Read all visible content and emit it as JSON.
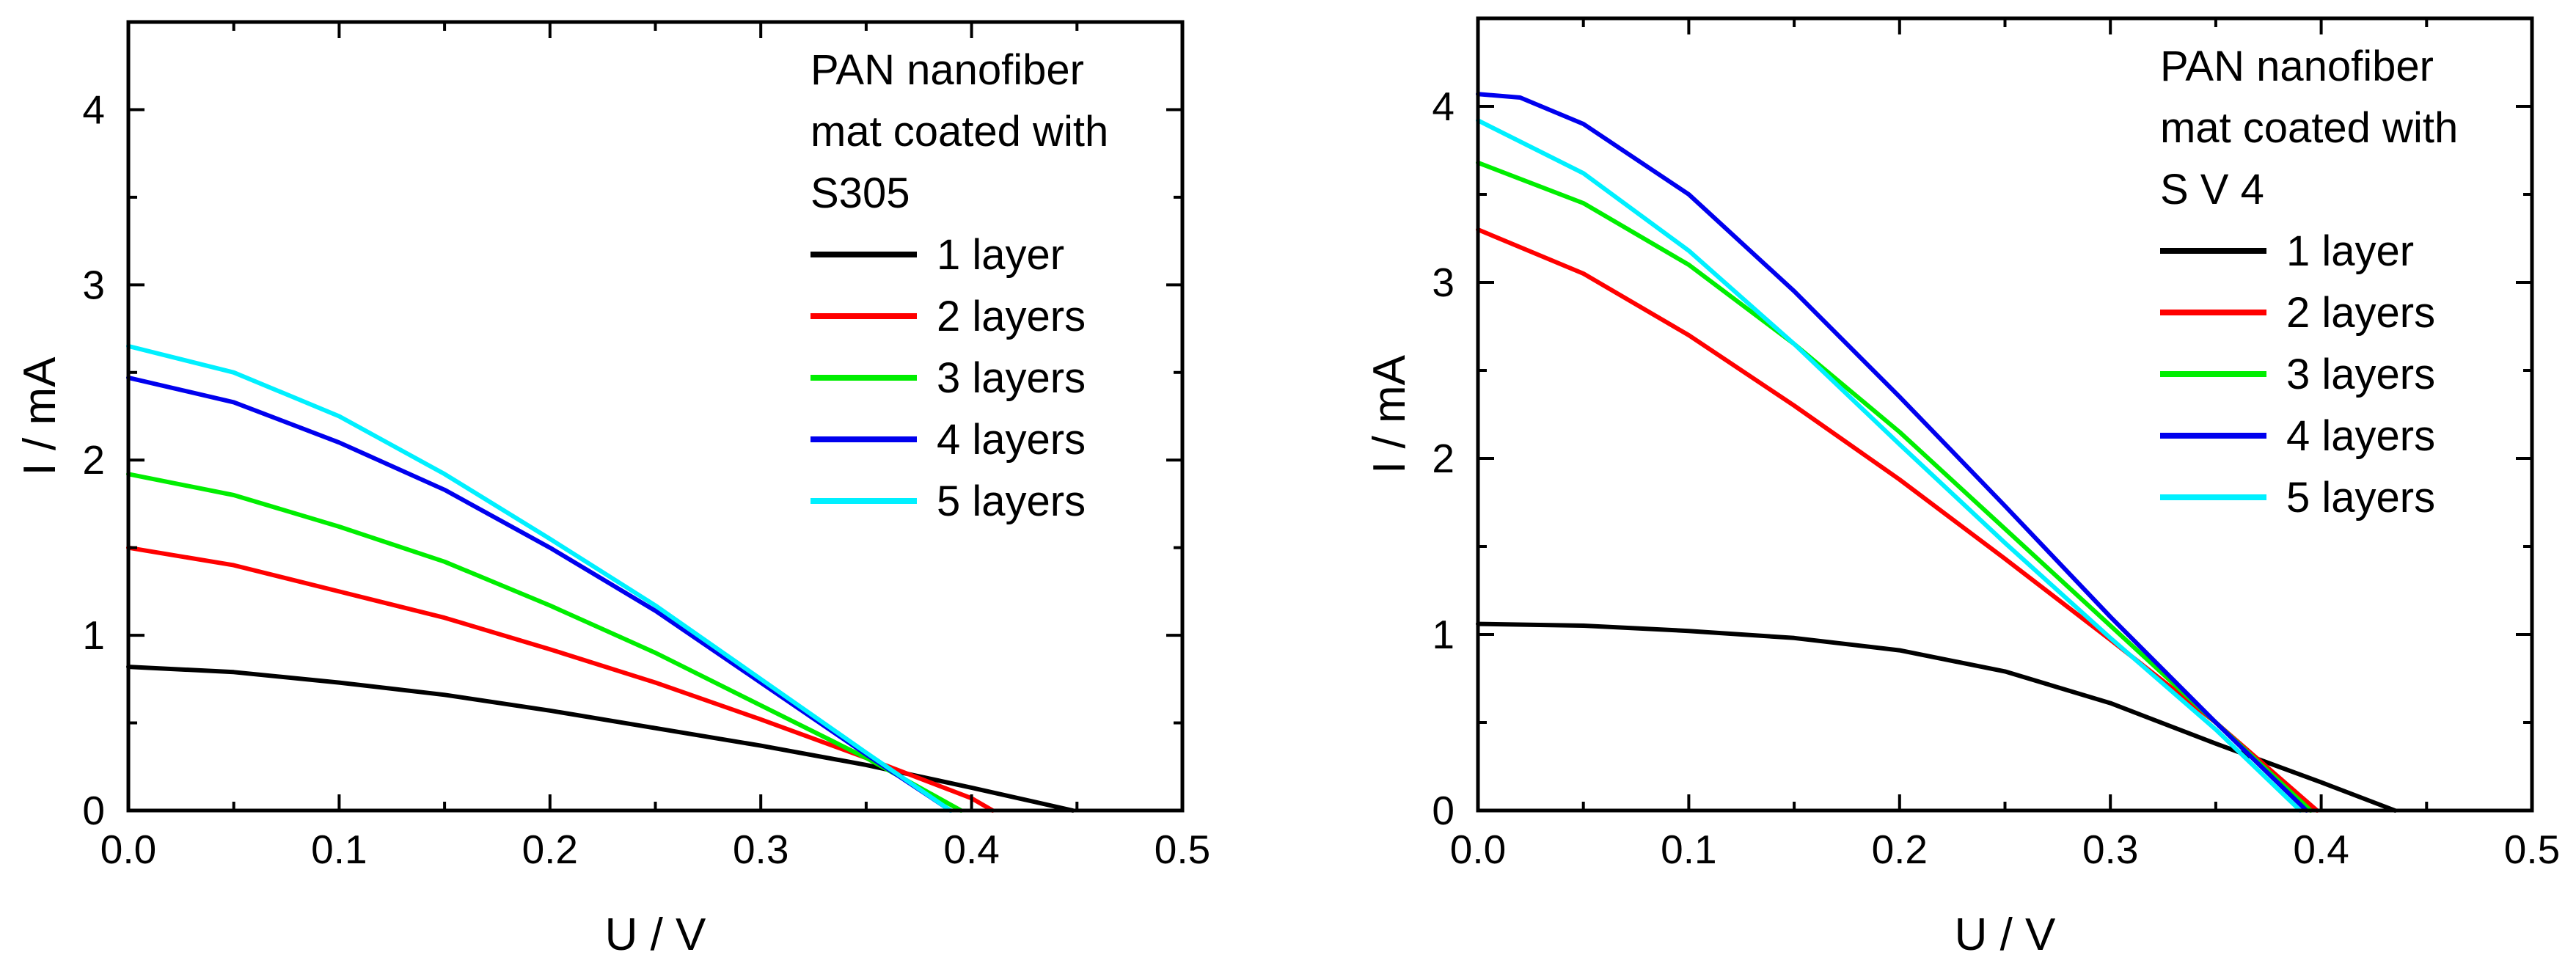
{
  "chart_data": [
    {
      "type": "line",
      "title": "",
      "xlabel": "U / V",
      "ylabel": "I / mA",
      "xlim": [
        0,
        0.5
      ],
      "ylim": [
        0,
        4.5
      ],
      "xticks": [
        0.0,
        0.1,
        0.2,
        0.3,
        0.4,
        0.5
      ],
      "xtick_labels": [
        "0.0",
        "0.1",
        "0.2",
        "0.3",
        "0.4",
        "0.5"
      ],
      "yticks": [
        0,
        1,
        2,
        3,
        4
      ],
      "ytick_labels": [
        "0",
        "1",
        "2",
        "3",
        "4"
      ],
      "grid": false,
      "legend_position": "top-right",
      "legend_title": [
        "PAN nanofiber",
        "mat coated with",
        "S305"
      ],
      "series": [
        {
          "name": "1 layer",
          "color": "#000000",
          "points": [
            [
              0,
              0.82
            ],
            [
              0.05,
              0.79
            ],
            [
              0.1,
              0.73
            ],
            [
              0.15,
              0.66
            ],
            [
              0.2,
              0.57
            ],
            [
              0.25,
              0.47
            ],
            [
              0.3,
              0.37
            ],
            [
              0.35,
              0.26
            ],
            [
              0.4,
              0.13
            ],
            [
              0.448,
              0.0
            ]
          ]
        },
        {
          "name": "2 layers",
          "color": "#ff0000",
          "points": [
            [
              0,
              1.5
            ],
            [
              0.05,
              1.4
            ],
            [
              0.1,
              1.25
            ],
            [
              0.15,
              1.1
            ],
            [
              0.2,
              0.92
            ],
            [
              0.25,
              0.73
            ],
            [
              0.3,
              0.52
            ],
            [
              0.35,
              0.3
            ],
            [
              0.4,
              0.07
            ],
            [
              0.41,
              0.0
            ]
          ]
        },
        {
          "name": "3 layers",
          "color": "#00ee00",
          "points": [
            [
              0,
              1.92
            ],
            [
              0.05,
              1.8
            ],
            [
              0.1,
              1.62
            ],
            [
              0.15,
              1.42
            ],
            [
              0.2,
              1.17
            ],
            [
              0.25,
              0.9
            ],
            [
              0.3,
              0.6
            ],
            [
              0.35,
              0.3
            ],
            [
              0.395,
              0.0
            ]
          ]
        },
        {
          "name": "4 layers",
          "color": "#0000ee",
          "points": [
            [
              0,
              2.47
            ],
            [
              0.05,
              2.33
            ],
            [
              0.1,
              2.1
            ],
            [
              0.15,
              1.83
            ],
            [
              0.2,
              1.5
            ],
            [
              0.25,
              1.14
            ],
            [
              0.3,
              0.73
            ],
            [
              0.35,
              0.32
            ],
            [
              0.39,
              0.0
            ]
          ]
        },
        {
          "name": "5 layers",
          "color": "#00f0ff",
          "points": [
            [
              0,
              2.65
            ],
            [
              0.05,
              2.5
            ],
            [
              0.1,
              2.25
            ],
            [
              0.15,
              1.92
            ],
            [
              0.2,
              1.55
            ],
            [
              0.25,
              1.17
            ],
            [
              0.3,
              0.75
            ],
            [
              0.35,
              0.33
            ],
            [
              0.39,
              0.0
            ]
          ]
        }
      ]
    },
    {
      "type": "line",
      "title": "",
      "xlabel": "U / V",
      "ylabel": "I / mA",
      "xlim": [
        0,
        0.5
      ],
      "ylim": [
        0,
        4.5
      ],
      "xticks": [
        0.0,
        0.1,
        0.2,
        0.3,
        0.4,
        0.5
      ],
      "xtick_labels": [
        "0.0",
        "0.1",
        "0.2",
        "0.3",
        "0.4",
        "0.5"
      ],
      "yticks": [
        0,
        1,
        2,
        3,
        4
      ],
      "ytick_labels": [
        "0",
        "1",
        "2",
        "3",
        "4"
      ],
      "grid": false,
      "legend_position": "top-right",
      "legend_title": [
        "PAN nanofiber",
        "mat coated with",
        "S V 4"
      ],
      "series": [
        {
          "name": "1 layer",
          "color": "#000000",
          "points": [
            [
              0,
              1.06
            ],
            [
              0.05,
              1.05
            ],
            [
              0.1,
              1.02
            ],
            [
              0.15,
              0.98
            ],
            [
              0.2,
              0.91
            ],
            [
              0.25,
              0.79
            ],
            [
              0.3,
              0.61
            ],
            [
              0.35,
              0.38
            ],
            [
              0.4,
              0.16
            ],
            [
              0.435,
              0.0
            ]
          ]
        },
        {
          "name": "2 layers",
          "color": "#ff0000",
          "points": [
            [
              0,
              3.3
            ],
            [
              0.05,
              3.05
            ],
            [
              0.1,
              2.7
            ],
            [
              0.15,
              2.3
            ],
            [
              0.2,
              1.88
            ],
            [
              0.25,
              1.43
            ],
            [
              0.3,
              0.97
            ],
            [
              0.35,
              0.5
            ],
            [
              0.398,
              0.0
            ]
          ]
        },
        {
          "name": "3 layers",
          "color": "#00ee00",
          "points": [
            [
              0,
              3.68
            ],
            [
              0.05,
              3.45
            ],
            [
              0.1,
              3.1
            ],
            [
              0.15,
              2.65
            ],
            [
              0.2,
              2.15
            ],
            [
              0.25,
              1.6
            ],
            [
              0.3,
              1.05
            ],
            [
              0.35,
              0.5
            ],
            [
              0.395,
              0.0
            ]
          ]
        },
        {
          "name": "4 layers",
          "color": "#0000ee",
          "points": [
            [
              0,
              4.07
            ],
            [
              0.02,
              4.05
            ],
            [
              0.05,
              3.9
            ],
            [
              0.1,
              3.5
            ],
            [
              0.15,
              2.95
            ],
            [
              0.2,
              2.35
            ],
            [
              0.25,
              1.73
            ],
            [
              0.3,
              1.1
            ],
            [
              0.35,
              0.5
            ],
            [
              0.393,
              0.0
            ]
          ]
        },
        {
          "name": "5 layers",
          "color": "#00f0ff",
          "points": [
            [
              0,
              3.92
            ],
            [
              0.05,
              3.62
            ],
            [
              0.1,
              3.18
            ],
            [
              0.15,
              2.65
            ],
            [
              0.2,
              2.08
            ],
            [
              0.25,
              1.52
            ],
            [
              0.3,
              0.98
            ],
            [
              0.35,
              0.46
            ],
            [
              0.39,
              0.0
            ]
          ]
        }
      ]
    }
  ]
}
